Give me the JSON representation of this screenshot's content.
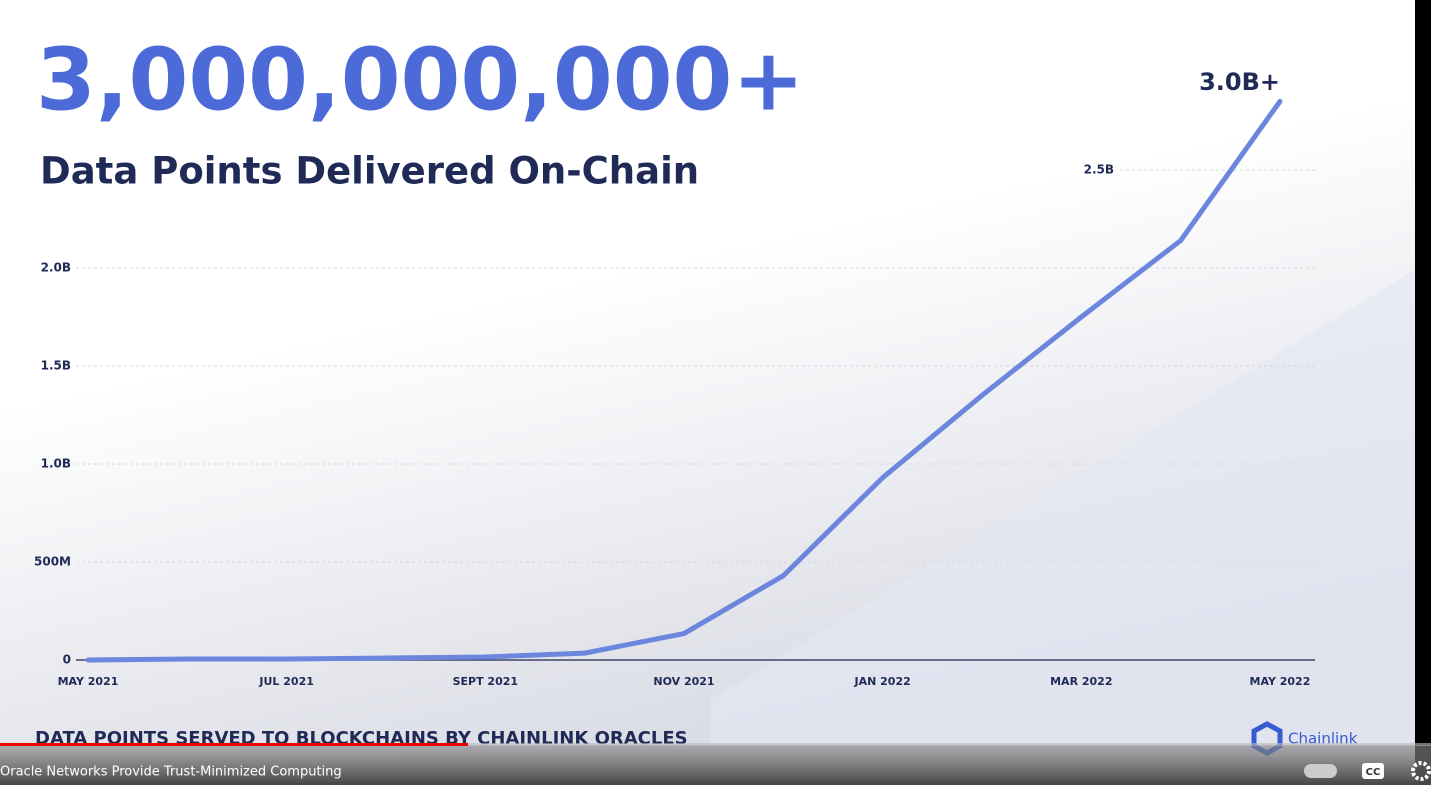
{
  "chart_data": {
    "type": "line",
    "title": "3,000,000,000+",
    "subtitle": "Data Points Delivered On-Chain",
    "caption": "DATA POINTS SERVED TO BLOCKCHAINS BY CHAINLINK ORACLES",
    "annotation": "3.0B+",
    "brand": "Chainlink",
    "categories": [
      "MAY 2021",
      null,
      "JUL 2021",
      null,
      "SEPT 2021",
      null,
      "NOV 2021",
      null,
      "JAN 2022",
      null,
      "MAR 2022",
      null,
      "MAY 2022"
    ],
    "series": [
      {
        "color": "#6b86dc",
        "values": [
          0,
          5000000,
          5000000,
          10000000,
          15000000,
          35000000,
          135000000,
          430000000,
          930000000,
          1350000000,
          1750000000,
          2140000000,
          2850000000
        ]
      }
    ],
    "ylim": [
      0,
      3000000000
    ],
    "yticks": [
      0,
      {
        "value": 500000000,
        "label": "500M"
      },
      {
        "value": 1000000000,
        "label": "1.0B"
      },
      {
        "value": 1500000000,
        "label": "1.5B"
      },
      {
        "value": 2000000000,
        "label": "2.0B"
      },
      {
        "value": 2500000000,
        "label": "2.5B"
      }
    ],
    "grid": true
  },
  "player": {
    "chapter": "Oracle Networks Provide Trust-Minimized Computing",
    "cc_label": "CC"
  }
}
